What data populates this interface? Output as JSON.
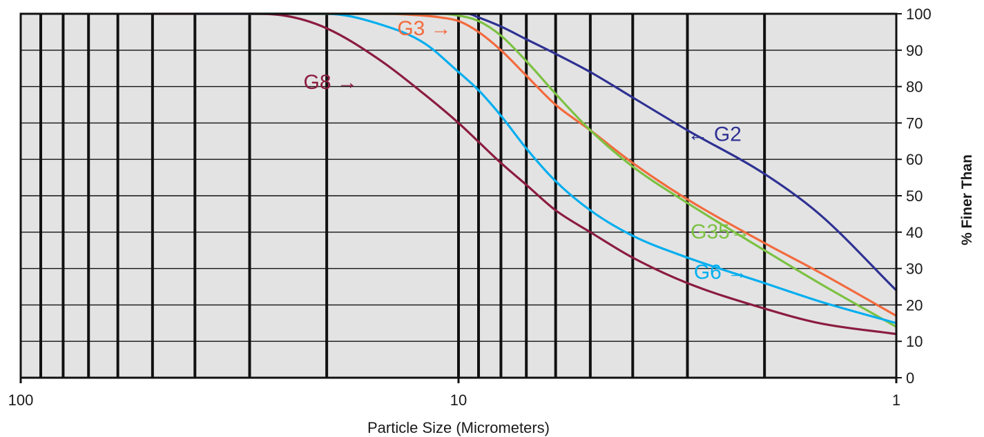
{
  "chart_data": {
    "type": "line",
    "title": "",
    "xlabel": "Particle Size (Micrometers)",
    "ylabel": "% Finer Than",
    "x_scale": "log",
    "x_reversed": true,
    "xlim": [
      100,
      1
    ],
    "ylim": [
      0,
      100
    ],
    "x_ticks": [
      100,
      10,
      1
    ],
    "x_tick_labels": [
      "100",
      "10",
      "1"
    ],
    "x_gridlines": [
      90,
      80,
      70,
      60,
      50,
      40,
      30,
      20,
      10,
      9,
      8,
      7,
      6,
      5,
      4,
      3,
      2
    ],
    "y_ticks": [
      0,
      10,
      20,
      30,
      40,
      50,
      60,
      70,
      80,
      90,
      100
    ],
    "y_tick_labels": [
      "0",
      "10",
      "20",
      "30",
      "40",
      "50",
      "60",
      "70",
      "80",
      "90",
      "100"
    ],
    "grid": true,
    "legend": "none",
    "background_color": "#e3e3e3",
    "series": [
      {
        "name": "G2",
        "label": "← G2",
        "color": "#2e3192",
        "x": [
          30,
          20,
          15,
          12,
          10,
          9.5,
          9,
          8,
          7,
          6,
          5,
          4,
          3,
          2,
          1.5,
          1
        ],
        "y": [
          100,
          100,
          100,
          100,
          100,
          100,
          99,
          96.5,
          93,
          89,
          84,
          77,
          68,
          56,
          45,
          24
        ]
      },
      {
        "name": "G3",
        "label": "G3 →",
        "color": "#f26a3d",
        "x": [
          30,
          20,
          15,
          12,
          11,
          10,
          9,
          8,
          7,
          6,
          5,
          4,
          3,
          2,
          1.5,
          1
        ],
        "y": [
          100,
          100,
          100,
          99.5,
          99,
          98,
          95,
          90,
          83,
          75,
          68,
          59,
          49,
          37,
          29,
          17
        ]
      },
      {
        "name": "G35",
        "label": "G35→",
        "color": "#7cc142",
        "x": [
          30,
          20,
          15,
          12,
          11,
          10,
          9,
          8,
          7,
          6,
          5,
          4,
          3,
          2,
          1.5,
          1
        ],
        "y": [
          100,
          100,
          100,
          100,
          100,
          99.5,
          98,
          94,
          87,
          78,
          68,
          58,
          48,
          35,
          26,
          14
        ]
      },
      {
        "name": "G6",
        "label": "G6 →",
        "color": "#00aeef",
        "x": [
          40,
          30,
          20,
          15,
          12,
          10,
          9,
          8,
          7,
          6,
          5,
          4,
          3,
          2,
          1.5,
          1
        ],
        "y": [
          100,
          100,
          100,
          97,
          92,
          84,
          79,
          72,
          63,
          54,
          46,
          39,
          33,
          26,
          21,
          15
        ]
      },
      {
        "name": "G8",
        "label": "G8 →",
        "color": "#8b1c3f",
        "x": [
          50,
          30,
          25,
          20,
          15,
          12,
          10,
          8,
          7,
          6,
          5,
          4,
          3,
          2,
          1.5,
          1
        ],
        "y": [
          100,
          100,
          99.5,
          96,
          87,
          78,
          70,
          59,
          53,
          46,
          40,
          33,
          26,
          19,
          15,
          12
        ]
      }
    ],
    "annotations": [
      {
        "series": "G3",
        "text": "G3 →",
        "x": 13.8,
        "y": 94.1
      },
      {
        "series": "G8",
        "text": "G8 →",
        "x": 22.6,
        "y": 79.4
      },
      {
        "series": "G2",
        "text": "← G2",
        "x": 3.0,
        "y": 65.1
      },
      {
        "series": "G35",
        "text": "G35→",
        "x": 2.95,
        "y": 38.3
      },
      {
        "series": "G6",
        "text": "G6 →",
        "x": 2.9,
        "y": 27.2
      }
    ]
  }
}
